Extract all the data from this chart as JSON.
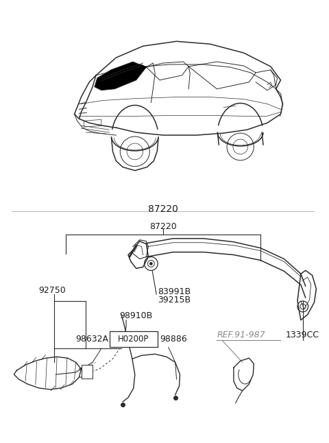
{
  "bg_color": "#ffffff",
  "fig_width": 4.8,
  "fig_height": 6.46,
  "dpi": 100,
  "line_color": "#2a2a2a",
  "text_color": "#1a1a1a",
  "ref_text_color": "#888888",
  "label_87220": "87220",
  "label_92750": "92750",
  "label_83991B": "83991B",
  "label_39215B": "39215B",
  "label_98910B": "98910B",
  "label_H0200P": "H0200P",
  "label_98632A": "98632A",
  "label_98886": "98886",
  "label_REF": "REF.91-987",
  "label_1339CC": "1339CC"
}
